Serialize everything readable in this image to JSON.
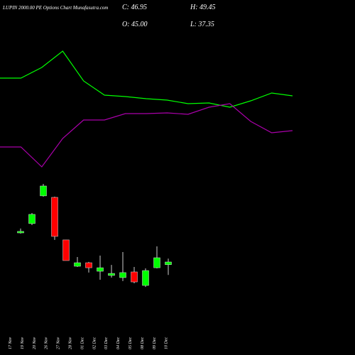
{
  "header": {
    "title": "LUPIN 2000.00 PE Options Chart Munafasutra.com",
    "close": "C: 46.95",
    "high": "H: 49.45",
    "open": "O: 45.00",
    "low": "L: 37.35"
  },
  "chart_data": [
    {
      "type": "line",
      "ylim": [
        0,
        100
      ],
      "series": [
        {
          "color": "#00ff00",
          "values": [
            70,
            70,
            77.5,
            89,
            68,
            58,
            57,
            55.5,
            54.5,
            52,
            52.5,
            49.5,
            54,
            59.5,
            57.5
          ]
        },
        {
          "color": "#aa00aa",
          "values": [
            21.5,
            21.5,
            7.5,
            27.5,
            40.5,
            40.5,
            45,
            45,
            45.5,
            44.5,
            49.5,
            52,
            39.5,
            31.5,
            33
          ]
        }
      ]
    },
    {
      "type": "candlestick",
      "ylim": [
        25.4,
        109.5
      ],
      "up_color": "#00ff00",
      "down_color": "#ff0000",
      "categories": [
        "17 Nov",
        "19 Nov",
        "20 Nov",
        "26 Nov",
        "27 Nov",
        "28 Nov",
        "01 Dec",
        "02 Dec",
        "03 Dec",
        "04 Dec",
        "05 Dec",
        "08 Dec",
        "09 Dec",
        "10 Dec"
      ],
      "open": [
        68.5,
        75.4,
        95.9,
        94.8,
        63.3,
        43.8,
        46.4,
        40.1,
        37.0,
        35.4,
        39.6,
        29.6,
        42.7,
        45.0
      ],
      "high": [
        71.7,
        83.2,
        104.8,
        95.3,
        63.3,
        50.6,
        47.0,
        51.7,
        44.8,
        54.3,
        43.3,
        42.2,
        58.5,
        49.45
      ],
      "low": [
        68.0,
        74.3,
        95.3,
        63.3,
        48.0,
        43.3,
        39.1,
        33.8,
        35.4,
        32.8,
        31.2,
        28.5,
        42.2,
        37.35
      ],
      "close": [
        69.6,
        82.2,
        103.2,
        65.9,
        48.0,
        46.4,
        42.7,
        42.7,
        38.5,
        39.1,
        32.2,
        40.6,
        50.1,
        46.95
      ]
    }
  ]
}
